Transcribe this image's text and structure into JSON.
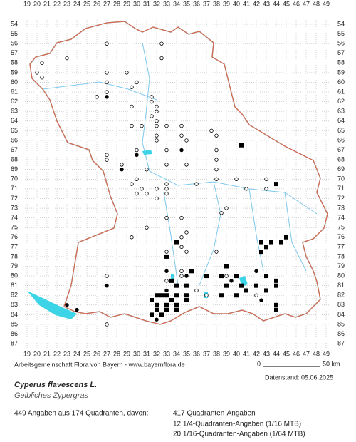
{
  "map": {
    "columns": [
      19,
      20,
      21,
      22,
      23,
      24,
      25,
      26,
      27,
      28,
      29,
      30,
      31,
      32,
      33,
      34,
      35,
      36,
      37,
      38,
      39,
      40,
      41,
      42,
      43,
      44,
      45,
      46,
      47,
      48,
      49
    ],
    "rows": [
      54,
      55,
      56,
      57,
      58,
      59,
      60,
      61,
      62,
      63,
      64,
      65,
      66,
      67,
      68,
      69,
      70,
      71,
      72,
      73,
      74,
      75,
      76,
      77,
      78,
      79,
      80,
      81,
      82,
      83,
      84,
      85,
      86,
      87
    ],
    "points": [
      {
        "col": 27,
        "row": 56,
        "symbol": "open"
      },
      {
        "col": 32.5,
        "row": 56,
        "symbol": "open"
      },
      {
        "col": 23,
        "row": 57.5,
        "symbol": "open"
      },
      {
        "col": 20.5,
        "row": 58,
        "symbol": "open"
      },
      {
        "col": 32.5,
        "row": 57.5,
        "symbol": "open"
      },
      {
        "col": 20,
        "row": 59,
        "symbol": "open"
      },
      {
        "col": 29,
        "row": 59,
        "symbol": "open"
      },
      {
        "col": 27,
        "row": 59,
        "symbol": "open"
      },
      {
        "col": 20.5,
        "row": 59.5,
        "symbol": "open"
      },
      {
        "col": 27,
        "row": 60,
        "symbol": "open"
      },
      {
        "col": 30,
        "row": 60,
        "symbol": "open"
      },
      {
        "col": 29.5,
        "row": 60.5,
        "symbol": "open"
      },
      {
        "col": 27,
        "row": 61,
        "symbol": "open"
      },
      {
        "col": 31.5,
        "row": 61.5,
        "symbol": "open"
      },
      {
        "col": 26,
        "row": 61.5,
        "symbol": "open"
      },
      {
        "col": 31.5,
        "row": 62,
        "symbol": "open"
      },
      {
        "col": 29.5,
        "row": 62.5,
        "symbol": "open"
      },
      {
        "col": 32,
        "row": 62.5,
        "symbol": "open"
      },
      {
        "col": 32,
        "row": 63,
        "symbol": "open"
      },
      {
        "col": 31.5,
        "row": 63.5,
        "symbol": "open"
      },
      {
        "col": 32,
        "row": 64,
        "symbol": "open"
      },
      {
        "col": 29.5,
        "row": 64.5,
        "symbol": "open"
      },
      {
        "col": 30.5,
        "row": 64.5,
        "symbol": "open"
      },
      {
        "col": 32,
        "row": 64.5,
        "symbol": "open"
      },
      {
        "col": 33,
        "row": 64.5,
        "symbol": "open"
      },
      {
        "col": 34.5,
        "row": 64.5,
        "symbol": "open"
      },
      {
        "col": 37.5,
        "row": 65,
        "symbol": "open"
      },
      {
        "col": 32,
        "row": 65.5,
        "symbol": "open"
      },
      {
        "col": 34.5,
        "row": 65.5,
        "symbol": "open"
      },
      {
        "col": 38,
        "row": 65.5,
        "symbol": "open"
      },
      {
        "col": 32,
        "row": 66,
        "symbol": "open"
      },
      {
        "col": 35,
        "row": 66,
        "symbol": "open"
      },
      {
        "col": 33,
        "row": 67,
        "symbol": "open"
      },
      {
        "col": 38,
        "row": 67,
        "symbol": "open"
      },
      {
        "col": 30,
        "row": 67,
        "symbol": "open"
      },
      {
        "col": 27,
        "row": 67.5,
        "symbol": "open"
      },
      {
        "col": 27,
        "row": 68,
        "symbol": "open"
      },
      {
        "col": 38,
        "row": 68,
        "symbol": "open"
      },
      {
        "col": 33,
        "row": 68.5,
        "symbol": "open"
      },
      {
        "col": 35,
        "row": 68.5,
        "symbol": "open"
      },
      {
        "col": 28.5,
        "row": 68.5,
        "symbol": "open"
      },
      {
        "col": 31,
        "row": 69,
        "symbol": "open"
      },
      {
        "col": 38,
        "row": 69,
        "symbol": "open"
      },
      {
        "col": 38,
        "row": 70,
        "symbol": "open"
      },
      {
        "col": 30,
        "row": 70,
        "symbol": "open"
      },
      {
        "col": 29.5,
        "row": 70.5,
        "symbol": "open"
      },
      {
        "col": 33,
        "row": 70.5,
        "symbol": "open"
      },
      {
        "col": 36,
        "row": 70.5,
        "symbol": "open"
      },
      {
        "col": 40,
        "row": 70,
        "symbol": "open"
      },
      {
        "col": 43,
        "row": 70,
        "symbol": "open"
      },
      {
        "col": 30.5,
        "row": 71,
        "symbol": "open"
      },
      {
        "col": 32,
        "row": 71,
        "symbol": "open"
      },
      {
        "col": 33,
        "row": 71,
        "symbol": "open"
      },
      {
        "col": 41,
        "row": 71,
        "symbol": "open"
      },
      {
        "col": 43,
        "row": 71,
        "symbol": "open"
      },
      {
        "col": 30,
        "row": 71.5,
        "symbol": "open"
      },
      {
        "col": 31,
        "row": 71.5,
        "symbol": "open"
      },
      {
        "col": 33,
        "row": 71.5,
        "symbol": "open"
      },
      {
        "col": 32,
        "row": 72,
        "symbol": "open"
      },
      {
        "col": 39,
        "row": 73,
        "symbol": "open"
      },
      {
        "col": 38.5,
        "row": 73.5,
        "symbol": "open"
      },
      {
        "col": 33,
        "row": 74,
        "symbol": "open"
      },
      {
        "col": 34.5,
        "row": 74,
        "symbol": "open"
      },
      {
        "col": 31,
        "row": 75,
        "symbol": "open"
      },
      {
        "col": 35,
        "row": 75.5,
        "symbol": "open"
      },
      {
        "col": 34.5,
        "row": 76,
        "symbol": "open"
      },
      {
        "col": 29.5,
        "row": 76,
        "symbol": "open"
      },
      {
        "col": 34.5,
        "row": 77,
        "symbol": "open"
      },
      {
        "col": 35,
        "row": 77.5,
        "symbol": "open"
      },
      {
        "col": 33,
        "row": 77.5,
        "symbol": "open"
      },
      {
        "col": 38,
        "row": 77.5,
        "symbol": "open"
      },
      {
        "col": 27,
        "row": 80,
        "symbol": "open"
      },
      {
        "col": 34.5,
        "row": 79.5,
        "symbol": "open"
      },
      {
        "col": 34.5,
        "row": 80,
        "symbol": "open"
      },
      {
        "col": 39,
        "row": 80,
        "symbol": "open"
      },
      {
        "col": 33,
        "row": 80.5,
        "symbol": "open"
      },
      {
        "col": 36,
        "row": 81.5,
        "symbol": "open"
      },
      {
        "col": 37,
        "row": 82,
        "symbol": "open"
      },
      {
        "col": 42,
        "row": 82,
        "symbol": "open"
      },
      {
        "col": 27,
        "row": 85,
        "symbol": "open"
      },
      {
        "col": 27,
        "row": 61.5,
        "symbol": "filled"
      },
      {
        "col": 34.5,
        "row": 67,
        "symbol": "filled"
      },
      {
        "col": 30,
        "row": 67.5,
        "symbol": "filled"
      },
      {
        "col": 28.5,
        "row": 69,
        "symbol": "filled"
      },
      {
        "col": 27,
        "row": 81,
        "symbol": "filled"
      },
      {
        "col": 33,
        "row": 79.5,
        "symbol": "filled"
      },
      {
        "col": 23,
        "row": 83,
        "symbol": "filled"
      },
      {
        "col": 24,
        "row": 83.5,
        "symbol": "filled"
      },
      {
        "col": 32,
        "row": 84.5,
        "symbol": "filled"
      },
      {
        "col": 42,
        "row": 79.5,
        "symbol": "filled"
      },
      {
        "col": 39.5,
        "row": 80.5,
        "symbol": "filled"
      },
      {
        "col": 42.5,
        "row": 82.5,
        "symbol": "filled"
      },
      {
        "col": 33,
        "row": 81.5,
        "symbol": "filled"
      },
      {
        "col": 35,
        "row": 80,
        "symbol": "filled"
      },
      {
        "col": 40.5,
        "row": 66.5,
        "symbol": "square"
      },
      {
        "col": 44,
        "row": 70.5,
        "symbol": "square"
      },
      {
        "col": 45,
        "row": 76,
        "symbol": "square"
      },
      {
        "col": 44.5,
        "row": 76.5,
        "symbol": "square"
      },
      {
        "col": 42.5,
        "row": 76.5,
        "symbol": "square"
      },
      {
        "col": 43.5,
        "row": 76.5,
        "symbol": "square"
      },
      {
        "col": 43,
        "row": 77,
        "symbol": "square"
      },
      {
        "col": 42.5,
        "row": 77.5,
        "symbol": "square"
      },
      {
        "col": 34,
        "row": 76.5,
        "symbol": "square"
      },
      {
        "col": 33,
        "row": 78,
        "symbol": "square"
      },
      {
        "col": 39,
        "row": 79,
        "symbol": "square"
      },
      {
        "col": 35.5,
        "row": 79.5,
        "symbol": "square"
      },
      {
        "col": 37,
        "row": 80,
        "symbol": "square"
      },
      {
        "col": 38.5,
        "row": 80,
        "symbol": "square"
      },
      {
        "col": 40,
        "row": 80,
        "symbol": "square"
      },
      {
        "col": 43,
        "row": 80,
        "symbol": "square"
      },
      {
        "col": 44,
        "row": 80.5,
        "symbol": "square"
      },
      {
        "col": 33.5,
        "row": 80.5,
        "symbol": "square"
      },
      {
        "col": 34,
        "row": 81,
        "symbol": "square"
      },
      {
        "col": 35,
        "row": 81,
        "symbol": "square"
      },
      {
        "col": 39,
        "row": 81,
        "symbol": "square"
      },
      {
        "col": 42,
        "row": 81,
        "symbol": "square"
      },
      {
        "col": 44,
        "row": 81,
        "symbol": "square"
      },
      {
        "col": 40.5,
        "row": 81,
        "symbol": "square"
      },
      {
        "col": 41,
        "row": 81.5,
        "symbol": "square"
      },
      {
        "col": 43,
        "row": 81.5,
        "symbol": "square"
      },
      {
        "col": 34,
        "row": 82,
        "symbol": "square"
      },
      {
        "col": 35,
        "row": 82,
        "symbol": "square"
      },
      {
        "col": 38.5,
        "row": 82,
        "symbol": "square"
      },
      {
        "col": 40,
        "row": 82,
        "symbol": "square"
      },
      {
        "col": 32,
        "row": 82,
        "symbol": "square"
      },
      {
        "col": 32.5,
        "row": 82,
        "symbol": "square"
      },
      {
        "col": 33,
        "row": 82,
        "symbol": "square"
      },
      {
        "col": 31.5,
        "row": 82.5,
        "symbol": "square"
      },
      {
        "col": 33.5,
        "row": 82.5,
        "symbol": "square"
      },
      {
        "col": 35,
        "row": 82.5,
        "symbol": "square"
      },
      {
        "col": 32,
        "row": 83,
        "symbol": "square"
      },
      {
        "col": 33,
        "row": 83,
        "symbol": "square"
      },
      {
        "col": 34,
        "row": 83,
        "symbol": "square"
      },
      {
        "col": 44,
        "row": 83,
        "symbol": "square"
      },
      {
        "col": 32,
        "row": 83.5,
        "symbol": "square"
      },
      {
        "col": 33,
        "row": 83.5,
        "symbol": "square"
      },
      {
        "col": 34,
        "row": 83.5,
        "symbol": "square"
      },
      {
        "col": 44,
        "row": 83.5,
        "symbol": "square"
      },
      {
        "col": 32.5,
        "row": 84,
        "symbol": "square"
      },
      {
        "col": 31.5,
        "row": 84,
        "symbol": "square"
      }
    ]
  },
  "footer": {
    "credit": "Arbeitsgemeinschaft Flora von Bayern - www.bayernflora.de",
    "scale_start": "0",
    "scale_end": "50 km",
    "date": "Datenstand: 05.06.2025",
    "species": "Cyperus flavescens L.",
    "common_name": "Gelbliches Zypergras",
    "summary": "449 Angaben aus 174 Quadranten, davon:",
    "stats": [
      "417 Quadranten-Angaben",
      "12 1/4-Quadranten-Angaben (1/16 MTB)",
      "20 1/16-Quadranten-Angaben (1/64 MTB)"
    ]
  }
}
